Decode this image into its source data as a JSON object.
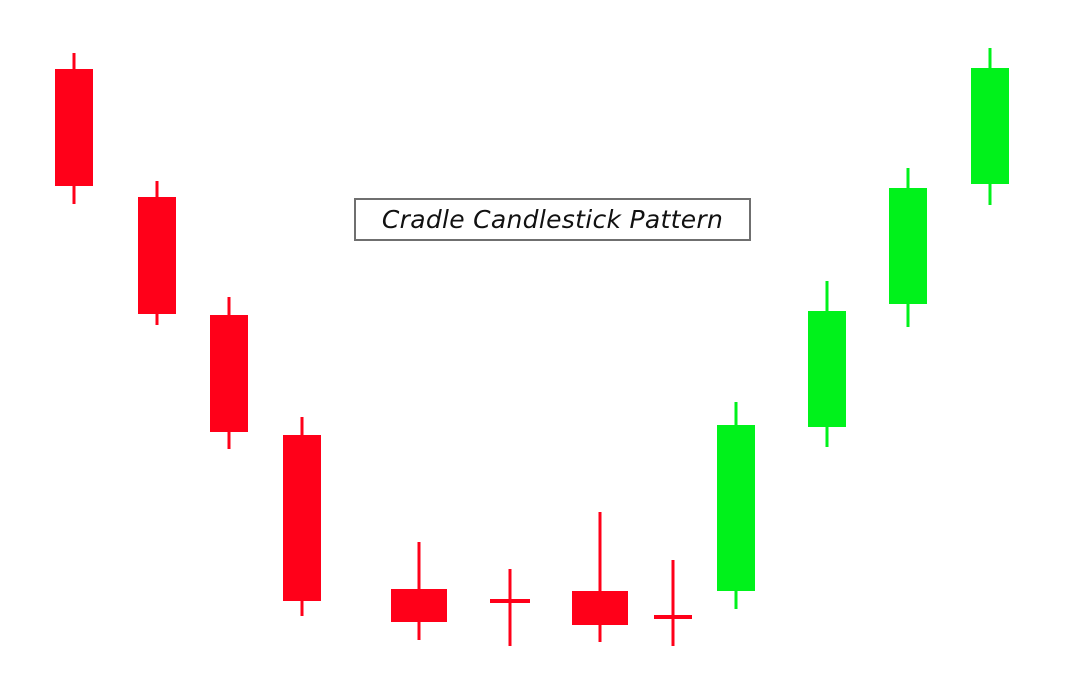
{
  "chart_data": {
    "type": "candlestick",
    "title": "Cradle Candlestick Pattern",
    "colors": {
      "bearish": "#ff0019",
      "bullish": "#00f21b"
    },
    "ylim": [
      0,
      635
    ],
    "candles": [
      {
        "open": 606,
        "close": 489,
        "high": 622,
        "low": 471,
        "direction": "bearish"
      },
      {
        "open": 478,
        "close": 361,
        "high": 494,
        "low": 350,
        "direction": "bearish"
      },
      {
        "open": 360,
        "close": 243,
        "high": 378,
        "low": 226,
        "direction": "bearish"
      },
      {
        "open": 240,
        "close": 74,
        "high": 258,
        "low": 59,
        "direction": "bearish"
      },
      {
        "open": 86,
        "close": 53,
        "high": 133,
        "low": 35,
        "direction": "bearish"
      },
      {
        "open": 74,
        "close": 74,
        "high": 106,
        "low": 29,
        "direction": "bearish"
      },
      {
        "open": 84,
        "close": 50,
        "high": 163,
        "low": 33,
        "direction": "bearish"
      },
      {
        "open": 58,
        "close": 58,
        "high": 115,
        "low": 29,
        "direction": "bearish"
      },
      {
        "open": 84,
        "close": 250,
        "high": 273,
        "low": 66,
        "direction": "bullish"
      },
      {
        "open": 248,
        "close": 364,
        "high": 394,
        "low": 228,
        "direction": "bullish"
      },
      {
        "open": 371,
        "close": 487,
        "high": 507,
        "low": 348,
        "direction": "bullish"
      },
      {
        "open": 491,
        "close": 607,
        "high": 627,
        "low": 470,
        "direction": "bullish"
      }
    ]
  }
}
